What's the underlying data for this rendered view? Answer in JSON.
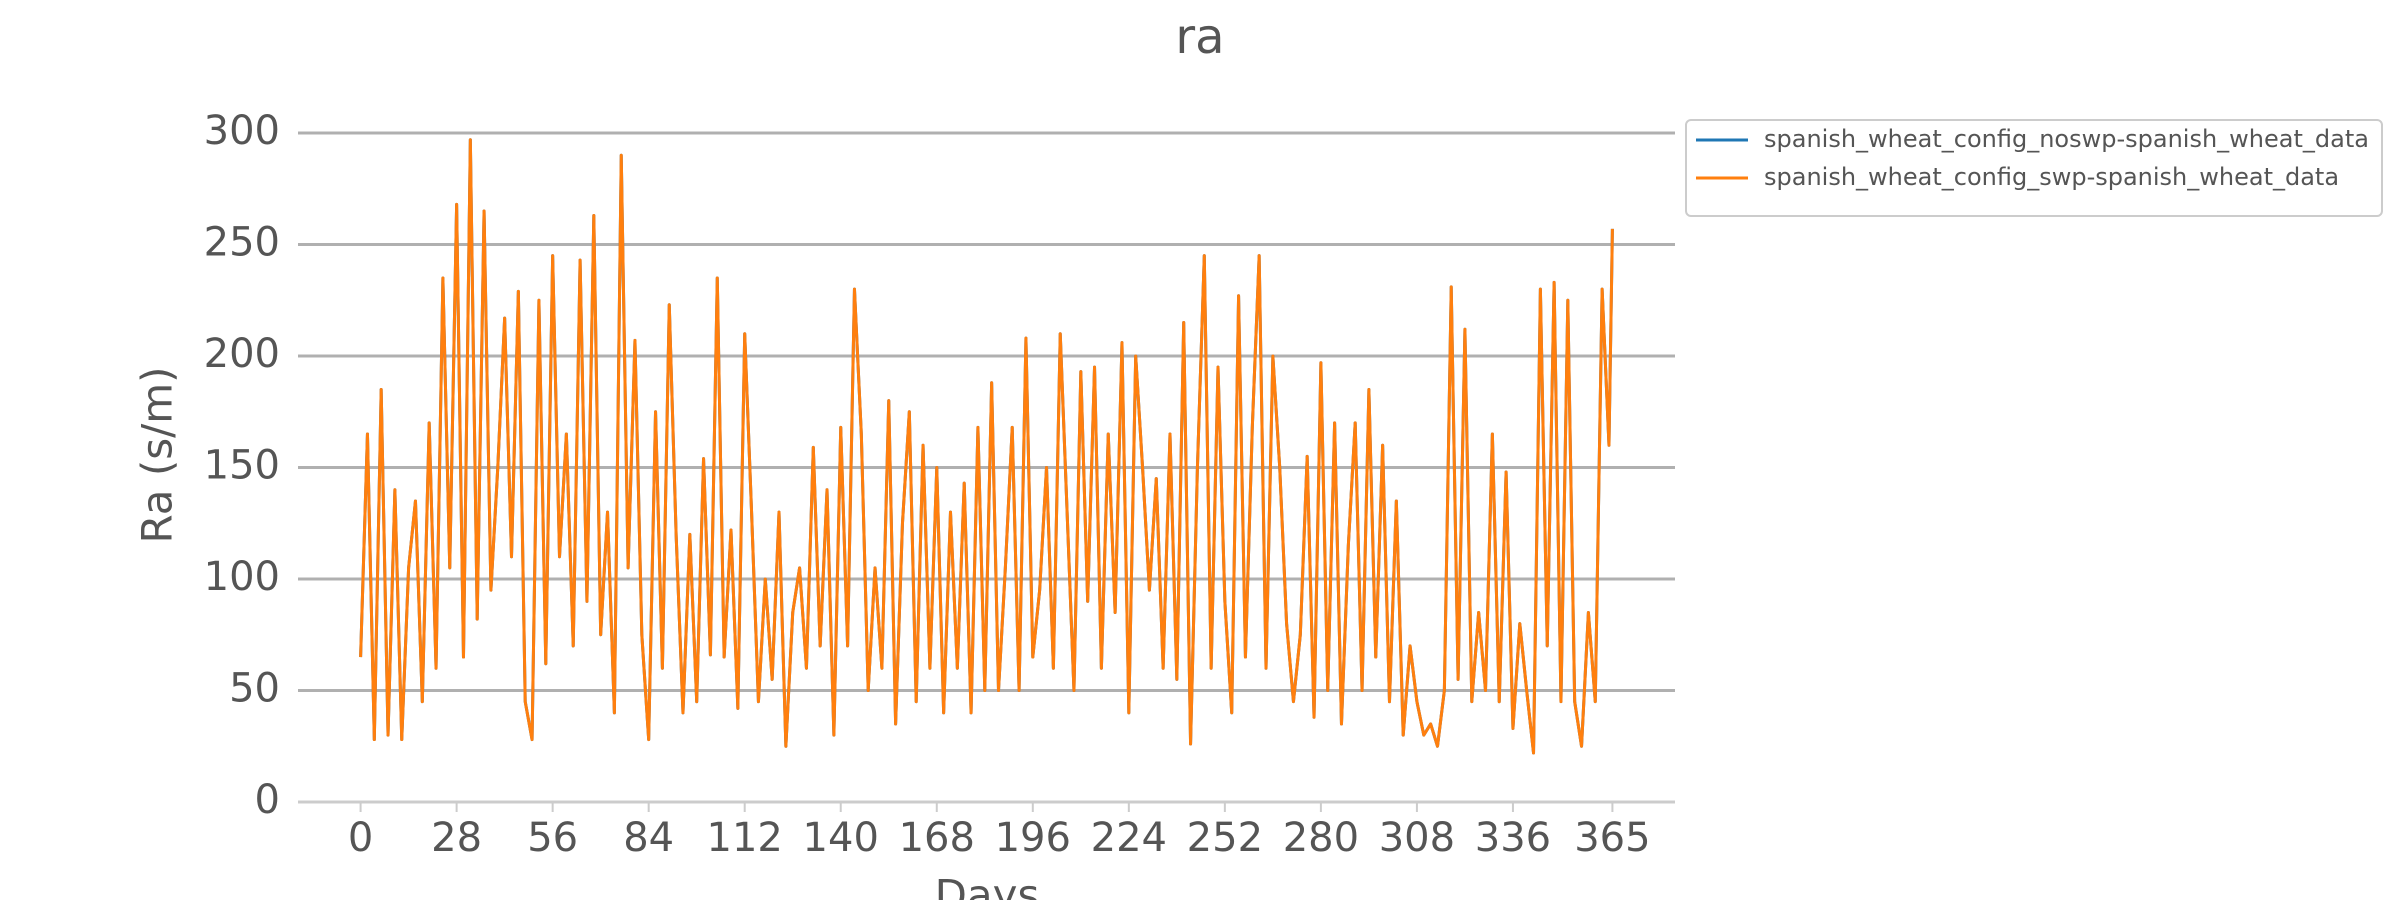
{
  "chart_data": {
    "type": "line",
    "title": "ra",
    "x_label": "Days",
    "y_label": "Ra (s/m)",
    "x": [
      0,
      2,
      4,
      6,
      8,
      10,
      12,
      14,
      16,
      18,
      20,
      22,
      24,
      26,
      28,
      30,
      32,
      34,
      36,
      38,
      40,
      42,
      44,
      46,
      48,
      50,
      52,
      54,
      56,
      58,
      60,
      62,
      64,
      66,
      68,
      70,
      72,
      74,
      76,
      78,
      80,
      82,
      84,
      86,
      88,
      90,
      92,
      94,
      96,
      98,
      100,
      102,
      104,
      106,
      108,
      110,
      112,
      114,
      116,
      118,
      120,
      122,
      124,
      126,
      128,
      130,
      132,
      134,
      136,
      138,
      140,
      142,
      144,
      146,
      148,
      150,
      152,
      154,
      156,
      158,
      160,
      162,
      164,
      166,
      168,
      170,
      172,
      174,
      176,
      178,
      180,
      182,
      184,
      186,
      188,
      190,
      192,
      194,
      196,
      198,
      200,
      202,
      204,
      206,
      208,
      210,
      212,
      214,
      216,
      218,
      220,
      222,
      224,
      226,
      228,
      230,
      232,
      234,
      236,
      238,
      240,
      242,
      244,
      246,
      248,
      250,
      252,
      254,
      256,
      258,
      260,
      262,
      264,
      266,
      268,
      270,
      272,
      274,
      276,
      278,
      280,
      282,
      284,
      286,
      288,
      290,
      292,
      294,
      296,
      298,
      300,
      302,
      304,
      306,
      308,
      310,
      312,
      314,
      316,
      318,
      320,
      322,
      324,
      326,
      328,
      330,
      332,
      334,
      336,
      338,
      340,
      342,
      344,
      346,
      348,
      350,
      352,
      354,
      356,
      358,
      360,
      362,
      364,
      365
    ],
    "series": [
      {
        "name": "spanish_wheat_config_noswp-spanish_wheat_data",
        "color": "#1f77b4",
        "values": [
          65,
          165,
          28,
          185,
          30,
          140,
          28,
          105,
          135,
          45,
          170,
          60,
          235,
          105,
          268,
          65,
          297,
          82,
          265,
          95,
          150,
          217,
          110,
          229,
          45,
          28,
          225,
          62,
          245,
          110,
          165,
          70,
          243,
          90,
          263,
          75,
          130,
          40,
          290,
          105,
          207,
          75,
          28,
          175,
          60,
          223,
          120,
          40,
          120,
          45,
          154,
          66,
          235,
          65,
          122,
          42,
          210,
          130,
          45,
          100,
          55,
          130,
          25,
          85,
          105,
          60,
          159,
          70,
          140,
          30,
          168,
          70,
          230,
          165,
          50,
          105,
          60,
          180,
          35,
          125,
          175,
          45,
          160,
          60,
          150,
          40,
          130,
          60,
          143,
          40,
          168,
          50,
          188,
          50,
          105,
          168,
          50,
          208,
          65,
          95,
          150,
          60,
          210,
          130,
          50,
          193,
          90,
          195,
          60,
          165,
          85,
          206,
          40,
          200,
          150,
          95,
          145,
          60,
          165,
          55,
          215,
          26,
          150,
          245,
          60,
          195,
          90,
          40,
          227,
          65,
          168,
          245,
          60,
          200,
          150,
          80,
          45,
          75,
          155,
          38,
          197,
          50,
          170,
          35,
          115,
          170,
          50,
          185,
          65,
          160,
          45,
          135,
          30,
          70,
          45,
          30,
          35,
          25,
          50,
          231,
          55,
          212,
          45,
          85,
          50,
          165,
          45,
          148,
          33,
          80,
          50,
          22,
          230,
          70,
          233,
          45,
          225,
          45,
          25,
          85,
          45,
          230,
          160,
          257
        ]
      },
      {
        "name": "spanish_wheat_config_swp-spanish_wheat_data",
        "color": "#ff7f0e",
        "values": [
          65,
          165,
          28,
          185,
          30,
          140,
          28,
          105,
          135,
          45,
          170,
          60,
          235,
          105,
          268,
          65,
          297,
          82,
          265,
          95,
          150,
          217,
          110,
          229,
          45,
          28,
          225,
          62,
          245,
          110,
          165,
          70,
          243,
          90,
          263,
          75,
          130,
          40,
          290,
          105,
          207,
          75,
          28,
          175,
          60,
          223,
          120,
          40,
          120,
          45,
          154,
          66,
          235,
          65,
          122,
          42,
          210,
          130,
          45,
          100,
          55,
          130,
          25,
          85,
          105,
          60,
          159,
          70,
          140,
          30,
          168,
          70,
          230,
          165,
          50,
          105,
          60,
          180,
          35,
          125,
          175,
          45,
          160,
          60,
          150,
          40,
          130,
          60,
          143,
          40,
          168,
          50,
          188,
          50,
          105,
          168,
          50,
          208,
          65,
          95,
          150,
          60,
          210,
          130,
          50,
          193,
          90,
          195,
          60,
          165,
          85,
          206,
          40,
          200,
          150,
          95,
          145,
          60,
          165,
          55,
          215,
          26,
          150,
          245,
          60,
          195,
          90,
          40,
          227,
          65,
          168,
          245,
          60,
          200,
          150,
          80,
          45,
          75,
          155,
          38,
          197,
          50,
          170,
          35,
          115,
          170,
          50,
          185,
          65,
          160,
          45,
          135,
          30,
          70,
          45,
          30,
          35,
          25,
          50,
          231,
          55,
          212,
          45,
          85,
          50,
          165,
          45,
          148,
          33,
          80,
          50,
          22,
          230,
          70,
          233,
          45,
          225,
          45,
          25,
          85,
          45,
          230,
          160,
          257
        ]
      }
    ],
    "xlim": [
      -18.25,
      383.25
    ],
    "ylim": [
      0,
      300
    ],
    "xticks": [
      0,
      28,
      56,
      84,
      112,
      140,
      168,
      196,
      224,
      252,
      280,
      308,
      336,
      365
    ],
    "yticks": [
      0,
      50,
      100,
      150,
      200,
      250,
      300
    ],
    "grid": true,
    "legend": "outside upper right"
  }
}
